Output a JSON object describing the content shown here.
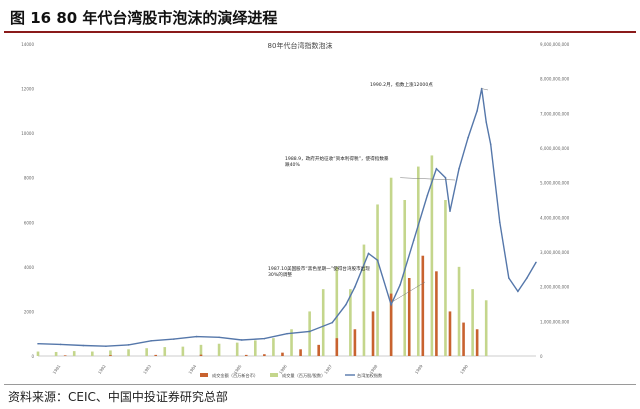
{
  "figure": {
    "title": "图 16   80 年代台湾股市泡沫的演绎进程",
    "source": "资料来源：CEIC、中国中投证券研究总部"
  },
  "colors": {
    "index_line": "#5577aa",
    "volume_bar": "#c4d68c",
    "value_bar": "#c8622f",
    "rule": "#8a1a1a"
  },
  "chart_data": {
    "type": "bar+line",
    "title": "80年代台湾指数泡沫",
    "x": [
      "1981",
      "1982",
      "1983",
      "1984",
      "1985",
      "1986",
      "1987",
      "1988",
      "1989",
      "1990"
    ],
    "yleft": {
      "ylim": [
        0,
        14000
      ],
      "ticks": [
        "0",
        "2000",
        "4000",
        "6000",
        "8000",
        "10000",
        "12000",
        "14000"
      ]
    },
    "yright": {
      "ylim": [
        0,
        9000000000
      ],
      "ticks": [
        "0",
        "1,000,000,000",
        "2,000,000,000",
        "3,000,000,000",
        "4,000,000,000",
        "5,000,000,000",
        "6,000,000,000",
        "7,000,000,000",
        "8,000,000,000",
        "9,000,000,000"
      ]
    },
    "series": [
      {
        "name": "成交金额（百万新台币）",
        "kind": "bar",
        "axis": "left",
        "points": [
          [
            0.6,
            30
          ],
          [
            1.6,
            40
          ],
          [
            2.6,
            50
          ],
          [
            3.6,
            60
          ],
          [
            4.6,
            50
          ],
          [
            5.0,
            80
          ],
          [
            5.4,
            150
          ],
          [
            5.8,
            300
          ],
          [
            6.2,
            500
          ],
          [
            6.6,
            800
          ],
          [
            7.0,
            1200
          ],
          [
            7.4,
            2000
          ],
          [
            7.8,
            2800
          ],
          [
            8.2,
            3500
          ],
          [
            8.5,
            4500
          ],
          [
            8.8,
            3800
          ],
          [
            9.1,
            2000
          ],
          [
            9.4,
            1500
          ],
          [
            9.7,
            1200
          ]
        ]
      },
      {
        "name": "成交量（百万股/股数）",
        "kind": "bar",
        "axis": "left",
        "points": [
          [
            0.0,
            200
          ],
          [
            0.4,
            180
          ],
          [
            0.8,
            220
          ],
          [
            1.2,
            200
          ],
          [
            1.6,
            250
          ],
          [
            2.0,
            300
          ],
          [
            2.4,
            350
          ],
          [
            2.8,
            400
          ],
          [
            3.2,
            420
          ],
          [
            3.6,
            500
          ],
          [
            4.0,
            550
          ],
          [
            4.4,
            600
          ],
          [
            4.8,
            700
          ],
          [
            5.2,
            800
          ],
          [
            5.6,
            1200
          ],
          [
            6.0,
            2000
          ],
          [
            6.3,
            3000
          ],
          [
            6.6,
            4000
          ],
          [
            6.9,
            3000
          ],
          [
            7.2,
            5000
          ],
          [
            7.5,
            6800
          ],
          [
            7.8,
            8000
          ],
          [
            8.1,
            7000
          ],
          [
            8.4,
            8500
          ],
          [
            8.7,
            9000
          ],
          [
            9.0,
            7000
          ],
          [
            9.3,
            4000
          ],
          [
            9.6,
            3000
          ],
          [
            9.9,
            2500
          ]
        ]
      },
      {
        "name": "台湾加权指数",
        "kind": "line",
        "axis": "left",
        "points": [
          [
            0.0,
            550
          ],
          [
            0.5,
            520
          ],
          [
            1.0,
            470
          ],
          [
            1.5,
            440
          ],
          [
            2.0,
            500
          ],
          [
            2.5,
            680
          ],
          [
            3.0,
            760
          ],
          [
            3.5,
            870
          ],
          [
            4.0,
            840
          ],
          [
            4.5,
            720
          ],
          [
            5.0,
            780
          ],
          [
            5.5,
            1000
          ],
          [
            6.0,
            1100
          ],
          [
            6.5,
            1500
          ],
          [
            6.8,
            2300
          ],
          [
            7.0,
            3100
          ],
          [
            7.3,
            4600
          ],
          [
            7.5,
            4300
          ],
          [
            7.8,
            2300
          ],
          [
            8.0,
            3200
          ],
          [
            8.3,
            5200
          ],
          [
            8.6,
            7200
          ],
          [
            8.8,
            8400
          ],
          [
            9.0,
            8000
          ],
          [
            9.1,
            6500
          ],
          [
            9.3,
            8400
          ],
          [
            9.5,
            9800
          ],
          [
            9.7,
            11000
          ],
          [
            9.8,
            12000
          ],
          [
            9.9,
            10500
          ],
          [
            10.0,
            9500
          ],
          [
            10.2,
            6000
          ],
          [
            10.4,
            3500
          ],
          [
            10.6,
            2900
          ],
          [
            10.8,
            3500
          ],
          [
            11.0,
            4200
          ]
        ]
      }
    ],
    "annotations": [
      {
        "label": "1990.2月，指数上涨12000点",
        "x": 9.8,
        "y": 12000
      },
      {
        "label": "1988.9，政府开始征收“资本利得税”，使得指数暴跌40%",
        "x": 8.0,
        "y": 8000
      },
      {
        "label": "1987.10美国股市“黑色星期一”使得台湾股市出现30%的调整",
        "x": 7.8,
        "y": 2400
      }
    ],
    "legend": {
      "position": "bottom"
    }
  }
}
